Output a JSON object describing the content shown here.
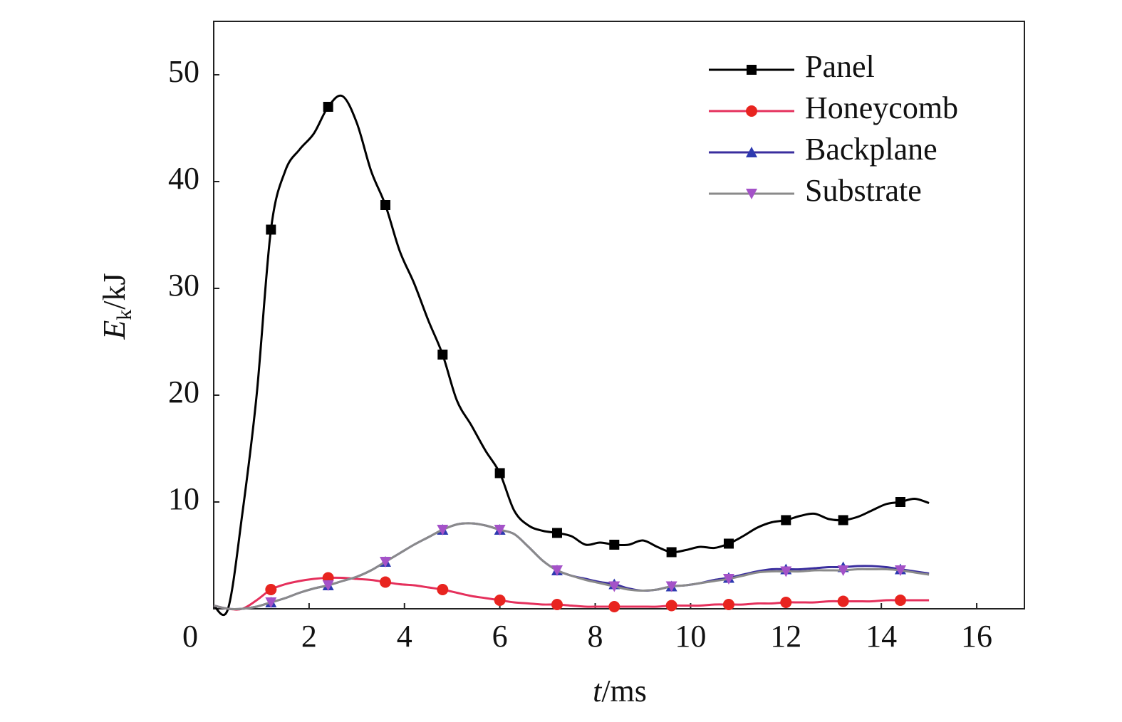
{
  "chart_data": {
    "type": "line",
    "y_label": {
      "symbol": "E",
      "subscript": "k",
      "unit": "/kJ"
    },
    "x_label": {
      "symbol": "t",
      "unit": "/ms"
    },
    "x": [
      0,
      0.3,
      0.6,
      0.9,
      1.2,
      1.5,
      1.8,
      2.1,
      2.4,
      2.7,
      3.0,
      3.3,
      3.6,
      3.9,
      4.2,
      4.5,
      4.8,
      5.1,
      5.4,
      5.7,
      6.0,
      6.3,
      6.6,
      6.9,
      7.2,
      7.5,
      7.8,
      8.1,
      8.4,
      8.7,
      9.0,
      9.3,
      9.6,
      9.9,
      10.2,
      10.5,
      10.8,
      11.1,
      11.4,
      11.7,
      12.0,
      12.3,
      12.6,
      12.9,
      13.2,
      13.5,
      13.8,
      14.1,
      14.4,
      14.7,
      15.0
    ],
    "series": [
      {
        "name": "Panel",
        "color": "#000000",
        "marker_color": "#000000",
        "marker": "square",
        "values": [
          0.3,
          0,
          8.9,
          20,
          35.5,
          41,
          43,
          44.5,
          47,
          48,
          45.5,
          41,
          37.8,
          33.5,
          30.5,
          27,
          23.8,
          19.5,
          17.2,
          14.8,
          12.7,
          9.2,
          7.8,
          7.3,
          7.1,
          6.8,
          6,
          6.2,
          6,
          6,
          6.4,
          5.8,
          5.3,
          5.5,
          5.8,
          5.7,
          6.1,
          6.8,
          7.6,
          8.1,
          8.3,
          8.7,
          8.9,
          8.4,
          8.3,
          8.6,
          9.2,
          9.8,
          10,
          10.3,
          9.9
        ]
      },
      {
        "name": "Honeycomb",
        "color": "#e5305c",
        "marker_color": "#e8241f",
        "marker": "circle",
        "values": [
          0.3,
          0,
          0,
          0.8,
          1.8,
          2.3,
          2.6,
          2.8,
          2.9,
          2.9,
          2.8,
          2.7,
          2.5,
          2.3,
          2.2,
          2.0,
          1.8,
          1.5,
          1.2,
          1.0,
          0.8,
          0.6,
          0.5,
          0.4,
          0.4,
          0.3,
          0.2,
          0.2,
          0.2,
          0.2,
          0.2,
          0.2,
          0.3,
          0.3,
          0.3,
          0.4,
          0.4,
          0.4,
          0.5,
          0.5,
          0.6,
          0.6,
          0.6,
          0.7,
          0.7,
          0.7,
          0.7,
          0.8,
          0.8,
          0.8,
          0.8
        ]
      },
      {
        "name": "Backplane",
        "color": "#3a2e9e",
        "marker_color": "#2e3ab0",
        "marker": "triangle-up",
        "values": [
          0.3,
          0,
          0,
          0.2,
          0.6,
          1.0,
          1.5,
          1.9,
          2.2,
          2.6,
          3.0,
          3.6,
          4.4,
          5.2,
          6.0,
          6.7,
          7.4,
          7.9,
          8.0,
          7.8,
          7.4,
          7.0,
          5.8,
          4.5,
          3.6,
          3.1,
          2.8,
          2.5,
          2.3,
          1.9,
          1.7,
          1.8,
          2.1,
          2.2,
          2.4,
          2.7,
          2.9,
          3.2,
          3.5,
          3.7,
          3.7,
          3.7,
          3.8,
          3.9,
          3.9,
          4.0,
          4.0,
          3.9,
          3.7,
          3.5,
          3.3
        ]
      },
      {
        "name": "Substrate",
        "color": "#8a8a8a",
        "marker_color": "#a452c8",
        "marker": "triangle-down",
        "values": [
          0.3,
          0,
          0,
          0.2,
          0.6,
          1.0,
          1.5,
          1.9,
          2.2,
          2.6,
          3.0,
          3.6,
          4.4,
          5.2,
          6.0,
          6.7,
          7.4,
          7.9,
          8.0,
          7.8,
          7.4,
          7.0,
          5.8,
          4.5,
          3.6,
          3.1,
          2.7,
          2.4,
          2.1,
          1.8,
          1.7,
          1.8,
          2.1,
          2.2,
          2.4,
          2.6,
          2.8,
          3.1,
          3.4,
          3.5,
          3.5,
          3.5,
          3.6,
          3.6,
          3.6,
          3.7,
          3.7,
          3.7,
          3.6,
          3.4,
          3.2
        ]
      }
    ],
    "xlim": [
      0,
      17
    ],
    "xticks": [
      0,
      2,
      4,
      6,
      8,
      10,
      12,
      14,
      16
    ],
    "ylim": [
      0,
      55
    ],
    "yticks": [
      10,
      20,
      30,
      40,
      50
    ],
    "grid": false,
    "legend": "top-right"
  }
}
